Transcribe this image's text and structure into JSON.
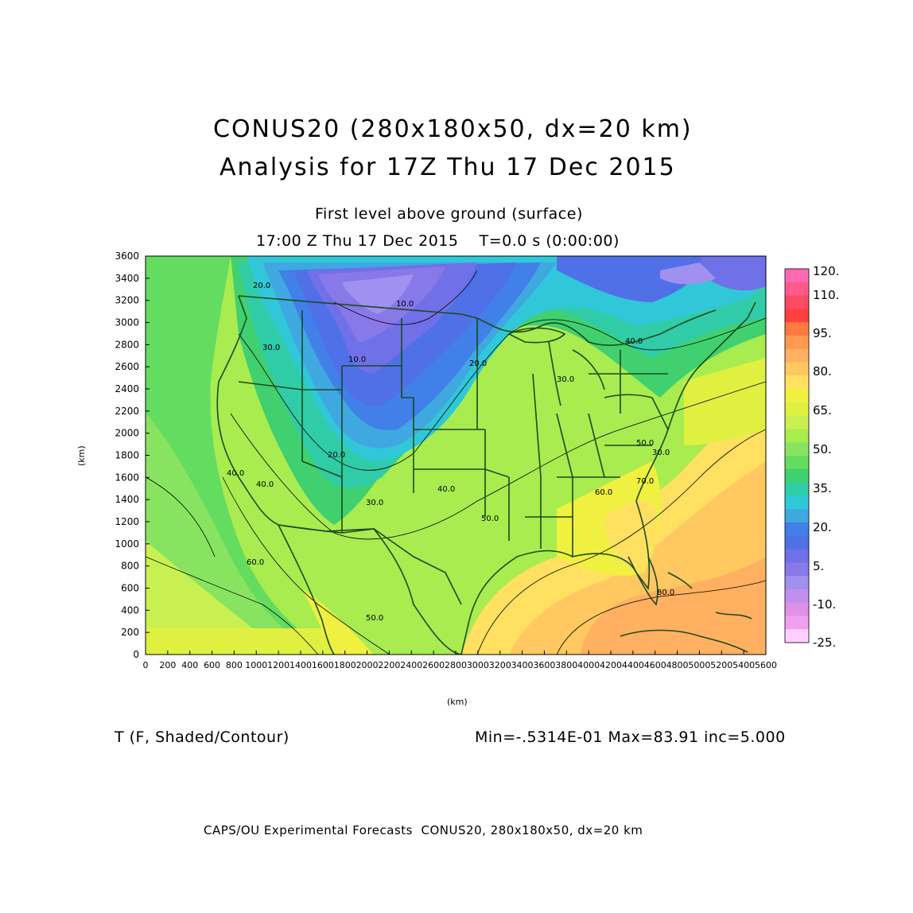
{
  "header": {
    "title_line1": "CONUS20 (280x180x50, dx=20 km)",
    "title_line2": "Analysis for 17Z Thu 17 Dec 2015",
    "level": "First level above ground (surface)",
    "time": "17:00 Z Thu 17 Dec 2015    T=0.0 s (0:00:00)"
  },
  "axes": {
    "x_label": "(km)",
    "y_label": "(km)",
    "x_ticks": [
      0,
      200,
      400,
      600,
      800,
      1000,
      1200,
      1400,
      1600,
      1800,
      2000,
      2200,
      2400,
      2600,
      2800,
      3000,
      3200,
      3400,
      3600,
      3800,
      4000,
      4200,
      4400,
      4600,
      4800,
      5000,
      5200,
      5400,
      5600
    ],
    "y_ticks": [
      0,
      200,
      400,
      600,
      800,
      1000,
      1200,
      1400,
      1600,
      1800,
      2000,
      2200,
      2400,
      2600,
      2800,
      3000,
      3200,
      3400,
      3600
    ],
    "x_range": [
      0,
      5600
    ],
    "y_range": [
      0,
      3600
    ]
  },
  "colorbar": {
    "labels": [
      "120.",
      "110.",
      "95.",
      "80.",
      "65.",
      "50.",
      "35.",
      "20.",
      "5.",
      "-10.",
      "-25."
    ],
    "colors": [
      "#ff69b4",
      "#ff5a8c",
      "#ff4a64",
      "#ff4040",
      "#ff7a40",
      "#ff9a50",
      "#ffb060",
      "#ffc860",
      "#ffe060",
      "#f0f040",
      "#e0f040",
      "#c8f050",
      "#a8ec50",
      "#88e460",
      "#64dc60",
      "#40d070",
      "#30cca8",
      "#30c8d8",
      "#40a8e0",
      "#4080e8",
      "#5070e8",
      "#7070e8",
      "#8878e8",
      "#a090f0",
      "#c090f0",
      "#e090e8",
      "#f0a0f0",
      "#ffd0ff"
    ]
  },
  "contour_labels": [
    "10.0",
    "10.0",
    "20.0",
    "20.0",
    "20.0",
    "30.0",
    "30.0",
    "30.0",
    "30.0",
    "40.0",
    "40.0",
    "40.0",
    "40.0",
    "50.0",
    "50.0",
    "50.0",
    "60.0",
    "60.0",
    "70.0",
    "80.0"
  ],
  "footer": {
    "variable": "T (F, Shaded/Contour)",
    "stats": "Min=-.5314E-01 Max=83.91 inc=5.000",
    "credit": "CAPS/OU Experimental Forecasts  CONUS20, 280x180x50, dx=20 km"
  },
  "colors": {
    "boundary": "#1a4a1a",
    "frame": "#000000"
  }
}
